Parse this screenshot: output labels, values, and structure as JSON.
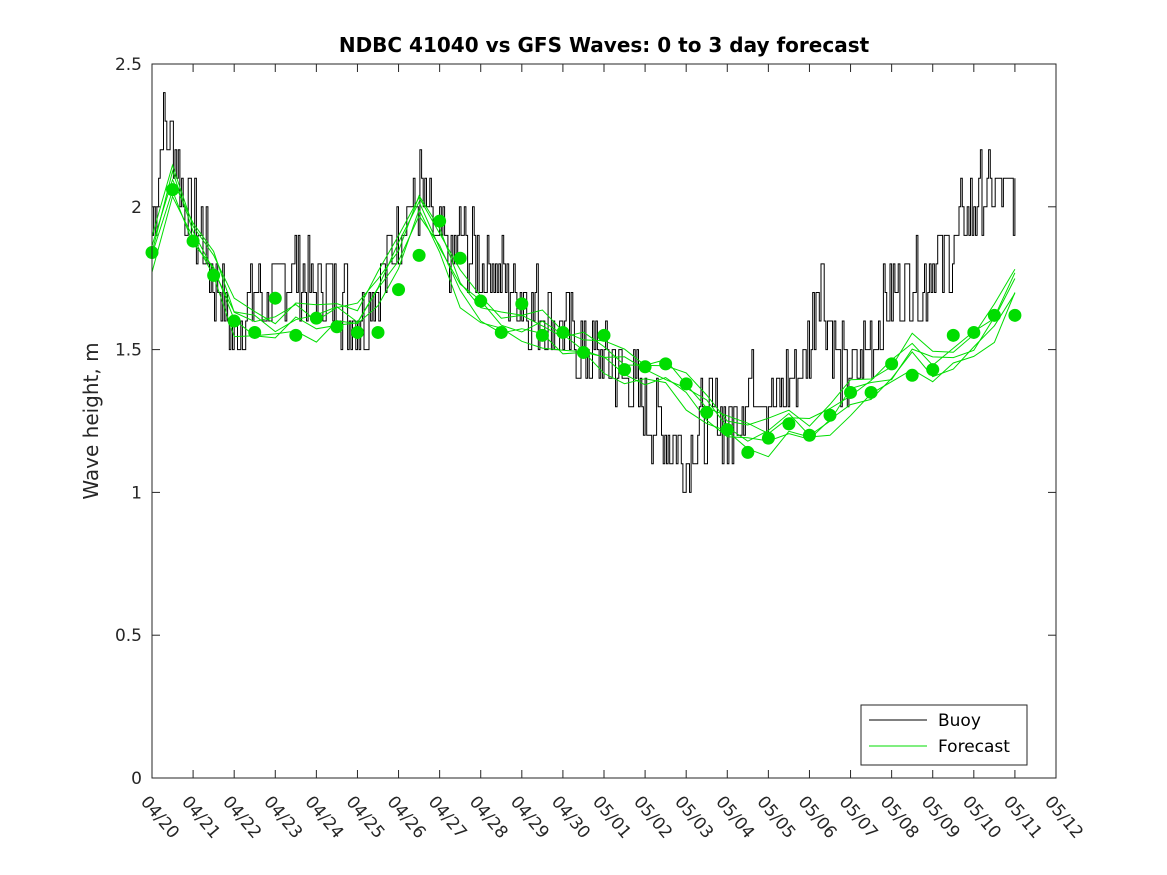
{
  "chart_data": {
    "type": "line",
    "title": "NDBC 41040 vs GFS Waves: 0 to 3 day forecast",
    "xlabel": "",
    "ylabel": "Wave height, m",
    "xlim": [
      "04/20",
      "05/12"
    ],
    "ylim": [
      0,
      2.5
    ],
    "x_tick_labels": [
      "04/20",
      "04/21",
      "04/22",
      "04/23",
      "04/24",
      "04/25",
      "04/26",
      "04/27",
      "04/28",
      "04/29",
      "04/30",
      "05/01",
      "05/02",
      "05/03",
      "05/04",
      "05/05",
      "05/06",
      "05/07",
      "05/08",
      "05/09",
      "05/10",
      "05/11",
      "05/12"
    ],
    "y_ticks": [
      0,
      0.5,
      1,
      1.5,
      2,
      2.5
    ],
    "y_tick_labels": [
      "0",
      "0.5",
      "1",
      "1.5",
      "2",
      "2.5"
    ],
    "legend": {
      "placement": "bottom-right",
      "entries": [
        {
          "label": "Buoy",
          "color": "#000000"
        },
        {
          "label": "Forecast",
          "color": "#00dd00"
        }
      ]
    },
    "grid": false,
    "series": [
      {
        "name": "Buoy",
        "color": "#000000",
        "x": [
          0,
          0.25,
          0.5,
          0.75,
          1,
          1.25,
          1.5,
          1.75,
          2,
          2.25,
          2.5,
          2.75,
          3,
          3.25,
          3.5,
          3.75,
          4,
          4.25,
          4.5,
          4.75,
          5,
          5.25,
          5.5,
          5.75,
          6,
          6.25,
          6.5,
          6.75,
          7,
          7.25,
          7.5,
          7.75,
          8,
          8.25,
          8.5,
          8.75,
          9,
          9.25,
          9.5,
          9.75,
          10,
          10.25,
          10.5,
          10.75,
          11,
          11.25,
          11.5,
          11.75,
          12,
          12.25,
          12.5,
          12.75,
          13,
          13.25,
          13.5,
          13.75,
          14,
          14.25,
          14.5,
          14.75,
          15,
          15.25,
          15.5,
          15.75,
          16,
          16.25,
          16.5,
          16.75,
          17,
          17.25,
          17.5,
          17.75,
          18,
          18.25,
          18.5,
          18.75,
          19,
          19.25,
          19.5,
          19.75,
          20,
          20.25,
          20.5,
          20.75,
          21
        ],
        "y": [
          1.9,
          2.3,
          2.2,
          2.05,
          1.95,
          1.9,
          1.75,
          1.65,
          1.55,
          1.6,
          1.7,
          1.65,
          1.7,
          1.75,
          1.8,
          1.75,
          1.7,
          1.75,
          1.7,
          1.65,
          1.6,
          1.65,
          1.75,
          1.8,
          1.95,
          2.0,
          2.05,
          1.95,
          1.85,
          1.8,
          1.9,
          1.85,
          1.8,
          1.8,
          1.75,
          1.7,
          1.7,
          1.65,
          1.65,
          1.6,
          1.55,
          1.55,
          1.5,
          1.5,
          1.45,
          1.45,
          1.4,
          1.35,
          1.3,
          1.25,
          1.2,
          1.15,
          1.15,
          1.2,
          1.25,
          1.3,
          1.2,
          1.3,
          1.35,
          1.4,
          1.35,
          1.3,
          1.4,
          1.45,
          1.5,
          1.8,
          1.55,
          1.45,
          1.4,
          1.45,
          1.55,
          1.6,
          1.7,
          1.7,
          1.75,
          1.7,
          1.8,
          1.8,
          1.85,
          1.95,
          2.0,
          2.05,
          2.05,
          2.05,
          2.05
        ]
      },
      {
        "name": "Forecast",
        "color": "#00dd00",
        "x": [
          0,
          0.5,
          1,
          1.5,
          2,
          2.5,
          3,
          3.5,
          4,
          4.5,
          5,
          5.5,
          6,
          6.5,
          7,
          7.5,
          8,
          8.5,
          9,
          9.5,
          10,
          10.5,
          11,
          11.5,
          12,
          12.5,
          13,
          13.5,
          14,
          14.5,
          15,
          15.5,
          16,
          16.5,
          17,
          17.5,
          18,
          18.5,
          19,
          19.5,
          20,
          20.5,
          21
        ],
        "y": [
          1.84,
          2.1,
          1.92,
          1.8,
          1.62,
          1.6,
          1.58,
          1.62,
          1.6,
          1.64,
          1.62,
          1.72,
          1.85,
          2.02,
          1.88,
          1.72,
          1.65,
          1.6,
          1.58,
          1.58,
          1.54,
          1.52,
          1.48,
          1.45,
          1.43,
          1.42,
          1.36,
          1.3,
          1.24,
          1.2,
          1.2,
          1.26,
          1.22,
          1.26,
          1.34,
          1.38,
          1.42,
          1.5,
          1.45,
          1.48,
          1.52,
          1.6,
          1.75
        ]
      }
    ],
    "forecast_dot_points": {
      "x": [
        0,
        0.5,
        1,
        1.5,
        2,
        2.5,
        3,
        3.5,
        4,
        4.5,
        5,
        5.5,
        6,
        6.5,
        7,
        7.5,
        8,
        8.5,
        9,
        9.5,
        10,
        10.5,
        11,
        11.5,
        12,
        12.5,
        13,
        13.5,
        14,
        14.5,
        15,
        15.5,
        16,
        16.5,
        17,
        17.5,
        18,
        18.5,
        19,
        19.5,
        20,
        20.5,
        21
      ],
      "y": [
        1.84,
        2.06,
        1.88,
        1.76,
        1.6,
        1.56,
        1.68,
        1.55,
        1.61,
        1.58,
        1.56,
        1.56,
        1.71,
        1.83,
        1.95,
        1.82,
        1.67,
        1.56,
        1.66,
        1.55,
        1.56,
        1.49,
        1.55,
        1.43,
        1.44,
        1.45,
        1.38,
        1.28,
        1.22,
        1.14,
        1.19,
        1.24,
        1.2,
        1.27,
        1.35,
        1.35,
        1.45,
        1.41,
        1.43,
        1.55,
        1.56,
        1.62,
        1.62
      ]
    }
  }
}
